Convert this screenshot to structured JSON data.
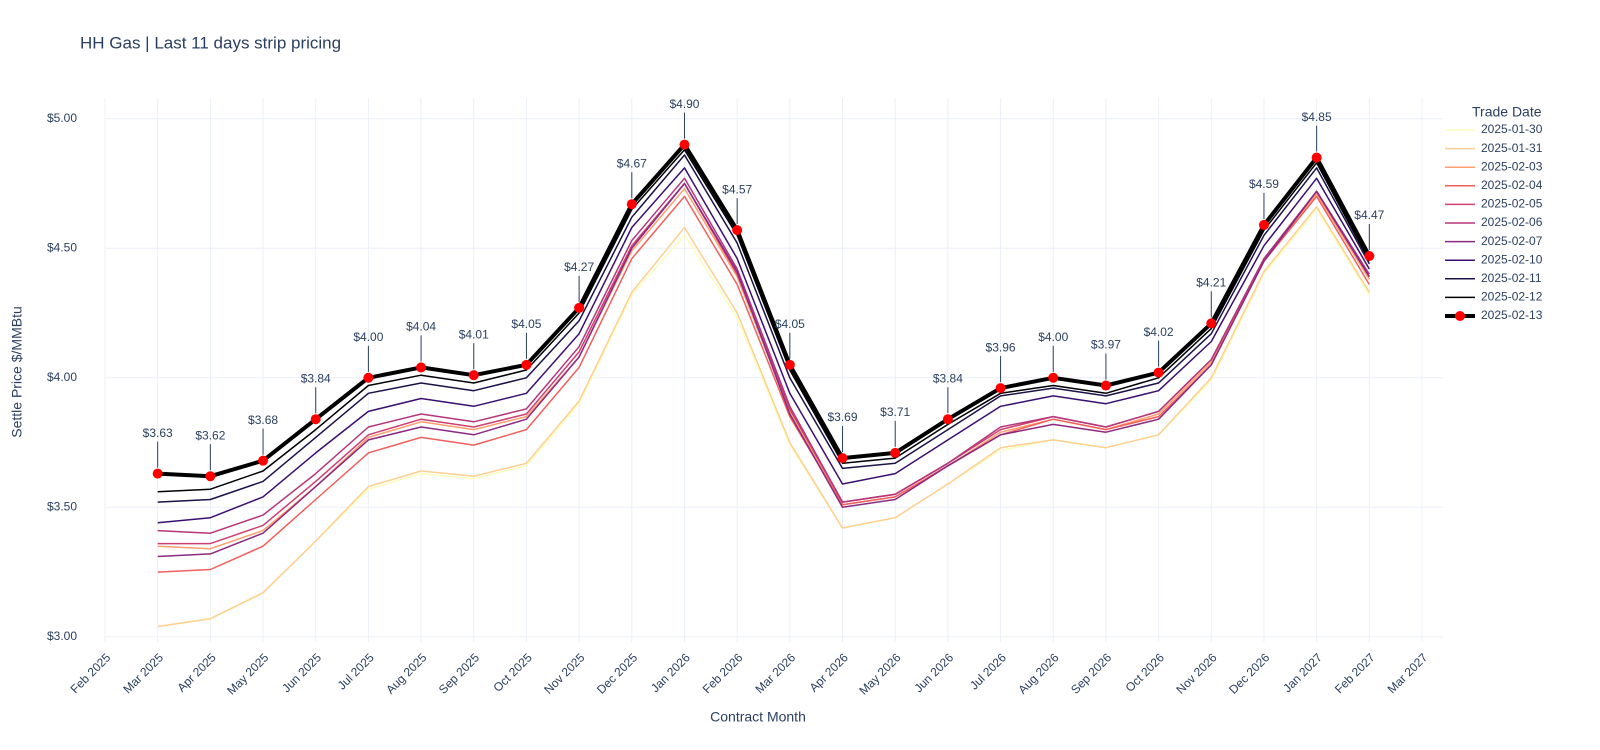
{
  "chart_data": {
    "type": "line",
    "title": "HH Gas | Last 11 days strip pricing",
    "x_label": "Contract Month",
    "y_label": "Settle Price $/MMBtu",
    "legend_title": "Trade Date",
    "legend_position": "right",
    "grid": true,
    "x": [
      "2025-03",
      "2025-04",
      "2025-05",
      "2025-06",
      "2025-07",
      "2025-08",
      "2025-09",
      "2025-10",
      "2025-11",
      "2025-12",
      "2026-01",
      "2026-02",
      "2026-03",
      "2026-04",
      "2026-05",
      "2026-06",
      "2026-07",
      "2026-08",
      "2026-09",
      "2026-10",
      "2026-11",
      "2026-12",
      "2027-01",
      "2027-02"
    ],
    "xlim": [
      "2025-02",
      "2027-03"
    ],
    "xticks": [
      {
        "value": "2025-02",
        "label": "Feb 2025"
      },
      {
        "value": "2025-03",
        "label": "Mar 2025"
      },
      {
        "value": "2025-04",
        "label": "Apr 2025"
      },
      {
        "value": "2025-05",
        "label": "May 2025"
      },
      {
        "value": "2025-06",
        "label": "Jun 2025"
      },
      {
        "value": "2025-07",
        "label": "Jul 2025"
      },
      {
        "value": "2025-08",
        "label": "Aug 2025"
      },
      {
        "value": "2025-09",
        "label": "Sep 2025"
      },
      {
        "value": "2025-10",
        "label": "Oct 2025"
      },
      {
        "value": "2025-11",
        "label": "Nov 2025"
      },
      {
        "value": "2025-12",
        "label": "Dec 2025"
      },
      {
        "value": "2026-01",
        "label": "Jan 2026"
      },
      {
        "value": "2026-02",
        "label": "Feb 2026"
      },
      {
        "value": "2026-03",
        "label": "Mar 2026"
      },
      {
        "value": "2026-04",
        "label": "Apr 2026"
      },
      {
        "value": "2026-05",
        "label": "May 2026"
      },
      {
        "value": "2026-06",
        "label": "Jun 2026"
      },
      {
        "value": "2026-07",
        "label": "Jul 2026"
      },
      {
        "value": "2026-08",
        "label": "Aug 2026"
      },
      {
        "value": "2026-09",
        "label": "Sep 2026"
      },
      {
        "value": "2026-10",
        "label": "Oct 2026"
      },
      {
        "value": "2026-11",
        "label": "Nov 2026"
      },
      {
        "value": "2026-12",
        "label": "Dec 2026"
      },
      {
        "value": "2027-01",
        "label": "Jan 2027"
      },
      {
        "value": "2027-02",
        "label": "Feb 2027"
      },
      {
        "value": "2027-03",
        "label": "Mar 2027"
      }
    ],
    "ylim": [
      2.98,
      5.08
    ],
    "yticks": [
      {
        "value": 3,
        "label": "$3.00"
      },
      {
        "value": 3.5,
        "label": "$3.50"
      },
      {
        "value": 4,
        "label": "$4.00"
      },
      {
        "value": 4.5,
        "label": "$4.50"
      },
      {
        "value": 5,
        "label": "$5.00"
      }
    ],
    "series": [
      {
        "name": "2025-01-30",
        "color": "#fcfdbf",
        "width": 1.5,
        "values": [
          3.04,
          3.07,
          3.17,
          3.37,
          3.57,
          3.63,
          3.61,
          3.66,
          3.9,
          4.32,
          4.55,
          4.23,
          3.74,
          3.42,
          3.46,
          3.59,
          3.72,
          3.76,
          3.73,
          3.78,
          3.99,
          4.4,
          4.65,
          4.32
        ]
      },
      {
        "name": "2025-01-31",
        "color": "#fecf92",
        "width": 1.5,
        "values": [
          3.04,
          3.07,
          3.17,
          3.37,
          3.58,
          3.64,
          3.62,
          3.67,
          3.91,
          4.33,
          4.58,
          4.25,
          3.75,
          3.42,
          3.46,
          3.59,
          3.73,
          3.76,
          3.73,
          3.78,
          4.0,
          4.41,
          4.66,
          4.33
        ]
      },
      {
        "name": "2025-02-03",
        "color": "#fe9f6d",
        "width": 1.5,
        "values": [
          3.35,
          3.34,
          3.41,
          3.58,
          3.77,
          3.83,
          3.8,
          3.85,
          4.08,
          4.49,
          4.73,
          4.39,
          3.87,
          3.51,
          3.54,
          3.66,
          3.79,
          3.84,
          3.8,
          3.86,
          4.06,
          4.45,
          4.71,
          4.38
        ]
      },
      {
        "name": "2025-02-04",
        "color": "#f1605d",
        "width": 1.5,
        "values": [
          3.25,
          3.26,
          3.35,
          3.53,
          3.71,
          3.77,
          3.74,
          3.8,
          4.04,
          4.46,
          4.7,
          4.36,
          3.85,
          3.51,
          3.54,
          3.66,
          3.78,
          3.84,
          3.8,
          3.85,
          4.05,
          4.45,
          4.7,
          4.36
        ]
      },
      {
        "name": "2025-02-05",
        "color": "#cd4071",
        "width": 1.5,
        "values": [
          3.36,
          3.36,
          3.43,
          3.6,
          3.78,
          3.84,
          3.81,
          3.86,
          4.1,
          4.51,
          4.75,
          4.4,
          3.88,
          3.52,
          3.55,
          3.67,
          3.8,
          3.85,
          3.81,
          3.87,
          4.07,
          4.46,
          4.72,
          4.39
        ]
      },
      {
        "name": "2025-02-06",
        "color": "#b5367a",
        "width": 1.5,
        "values": [
          3.41,
          3.4,
          3.47,
          3.63,
          3.81,
          3.86,
          3.83,
          3.88,
          4.12,
          4.53,
          4.77,
          4.42,
          3.89,
          3.52,
          3.55,
          3.67,
          3.81,
          3.85,
          3.81,
          3.87,
          4.07,
          4.46,
          4.72,
          4.4
        ]
      },
      {
        "name": "2025-02-07",
        "color": "#8c2981",
        "width": 1.5,
        "values": [
          3.31,
          3.32,
          3.4,
          3.58,
          3.76,
          3.81,
          3.78,
          3.84,
          4.08,
          4.5,
          4.75,
          4.41,
          3.86,
          3.5,
          3.53,
          3.66,
          3.78,
          3.82,
          3.79,
          3.84,
          4.05,
          4.45,
          4.72,
          4.39
        ]
      },
      {
        "name": "2025-02-10",
        "color": "#3b0f70",
        "width": 1.5,
        "values": [
          3.44,
          3.46,
          3.54,
          3.71,
          3.87,
          3.92,
          3.89,
          3.94,
          4.17,
          4.58,
          4.81,
          4.46,
          3.94,
          3.59,
          3.63,
          3.76,
          3.89,
          3.93,
          3.9,
          3.95,
          4.14,
          4.51,
          4.77,
          4.42
        ]
      },
      {
        "name": "2025-02-11",
        "color": "#1d1147",
        "width": 1.5,
        "values": [
          3.52,
          3.53,
          3.6,
          3.77,
          3.94,
          3.98,
          3.95,
          4.0,
          4.22,
          4.62,
          4.86,
          4.52,
          4.0,
          3.65,
          3.67,
          3.8,
          3.93,
          3.96,
          3.93,
          3.98,
          4.17,
          4.55,
          4.81,
          4.44
        ]
      },
      {
        "name": "2025-02-12",
        "color": "#000004",
        "width": 1.5,
        "values": [
          3.56,
          3.57,
          3.64,
          3.8,
          3.97,
          4.01,
          3.98,
          4.03,
          4.25,
          4.65,
          4.88,
          4.55,
          4.03,
          3.67,
          3.69,
          3.82,
          3.94,
          3.97,
          3.94,
          4.0,
          4.19,
          4.57,
          4.83,
          4.45
        ]
      },
      {
        "name": "2025-02-13",
        "color": "#000000",
        "width": 4,
        "marker_color": "#ff0000",
        "values": [
          3.63,
          3.62,
          3.68,
          3.84,
          4.0,
          4.04,
          4.01,
          4.05,
          4.27,
          4.67,
          4.9,
          4.57,
          4.05,
          3.69,
          3.71,
          3.84,
          3.96,
          4.0,
          3.97,
          4.02,
          4.21,
          4.59,
          4.85,
          4.47
        ],
        "value_labels": [
          "$3.63",
          "$3.62",
          "$3.68",
          "$3.84",
          "$4.00",
          "$4.04",
          "$4.01",
          "$4.05",
          "$4.27",
          "$4.67",
          "$4.90",
          "$4.57",
          "$4.05",
          "$3.69",
          "$3.71",
          "$3.84",
          "$3.96",
          "$4.00",
          "$3.97",
          "$4.02",
          "$4.21",
          "$4.59",
          "$4.85",
          "$4.47"
        ]
      }
    ]
  }
}
